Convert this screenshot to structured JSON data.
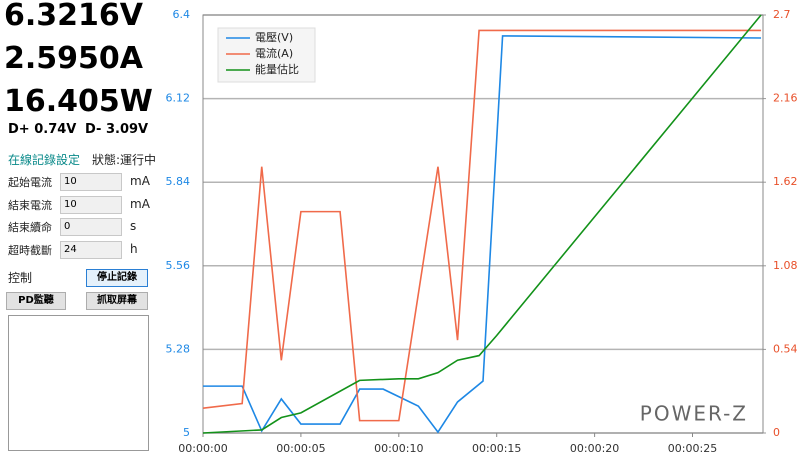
{
  "readings": {
    "voltage": "6.3216V",
    "current": "2.5950A",
    "power": "16.405W",
    "d_plus": "D+ 0.74V",
    "d_minus": "D- 3.09V"
  },
  "logging": {
    "title": "在線記錄設定",
    "status": "狀態:運行中",
    "fields": [
      {
        "label": "起始電流",
        "value": "10",
        "unit": "mA"
      },
      {
        "label": "結束電流",
        "value": "10",
        "unit": "mA"
      },
      {
        "label": "結束續命",
        "value": "0",
        "unit": "s"
      },
      {
        "label": "超時截斷",
        "value": "24",
        "unit": "h"
      }
    ],
    "control_label": "控制",
    "stop_button": "停止記錄",
    "pd_button": "PD監聽",
    "capture_button": "抓取屏幕"
  },
  "chart_data": {
    "type": "line",
    "watermark": "POWER-Z",
    "xlim": [
      0,
      28.6
    ],
    "xticks": [
      {
        "value": 0,
        "label": "00:00:00"
      },
      {
        "value": 5,
        "label": "00:00:05"
      },
      {
        "value": 10,
        "label": "00:00:10"
      },
      {
        "value": 15,
        "label": "00:00:15"
      },
      {
        "value": 20,
        "label": "00:00:20"
      },
      {
        "value": 25,
        "label": "00:00:25"
      }
    ],
    "ylim": [
      5,
      6.4
    ],
    "yticks": [
      5,
      5.28,
      5.56,
      5.84,
      6.12,
      6.4
    ],
    "ytick_color": "#1e88e5",
    "y2lim": [
      0,
      2.7
    ],
    "y2ticks": [
      0,
      0.54,
      1.08,
      1.62,
      2.16,
      2.7
    ],
    "y2tick_color": "#e8502a",
    "grid": true,
    "legend": "upper left",
    "series": [
      {
        "name": "電壓(V)",
        "color": "#1e88e5",
        "x": [
          0,
          2,
          3,
          4,
          5,
          7,
          8,
          9.2,
          11,
          12,
          13,
          14.3,
          15.3,
          28.5
        ],
        "values": [
          5.157,
          5.157,
          5.007,
          5.114,
          5.03,
          5.03,
          5.147,
          5.147,
          5.09,
          5.003,
          5.104,
          5.174,
          6.33,
          6.323
        ]
      },
      {
        "name": "電流(A)",
        "color": "#f06a4a",
        "axis": "y2",
        "x": [
          0,
          2,
          3,
          4,
          5,
          7,
          8,
          10,
          12,
          13,
          14.1,
          28.5
        ],
        "values": [
          0.16,
          0.19,
          1.72,
          0.47,
          1.43,
          1.43,
          0.08,
          0.08,
          1.72,
          0.6,
          2.6,
          2.6
        ]
      },
      {
        "name": "能量估比",
        "color": "#13921a",
        "axis": "y2",
        "x": [
          0,
          3,
          4,
          5,
          8,
          10,
          11,
          12,
          13,
          14.1,
          15,
          28.5
        ],
        "values": [
          0,
          0.02,
          0.1,
          0.13,
          0.34,
          0.35,
          0.35,
          0.39,
          0.47,
          0.5,
          0.63,
          2.7
        ]
      }
    ]
  }
}
